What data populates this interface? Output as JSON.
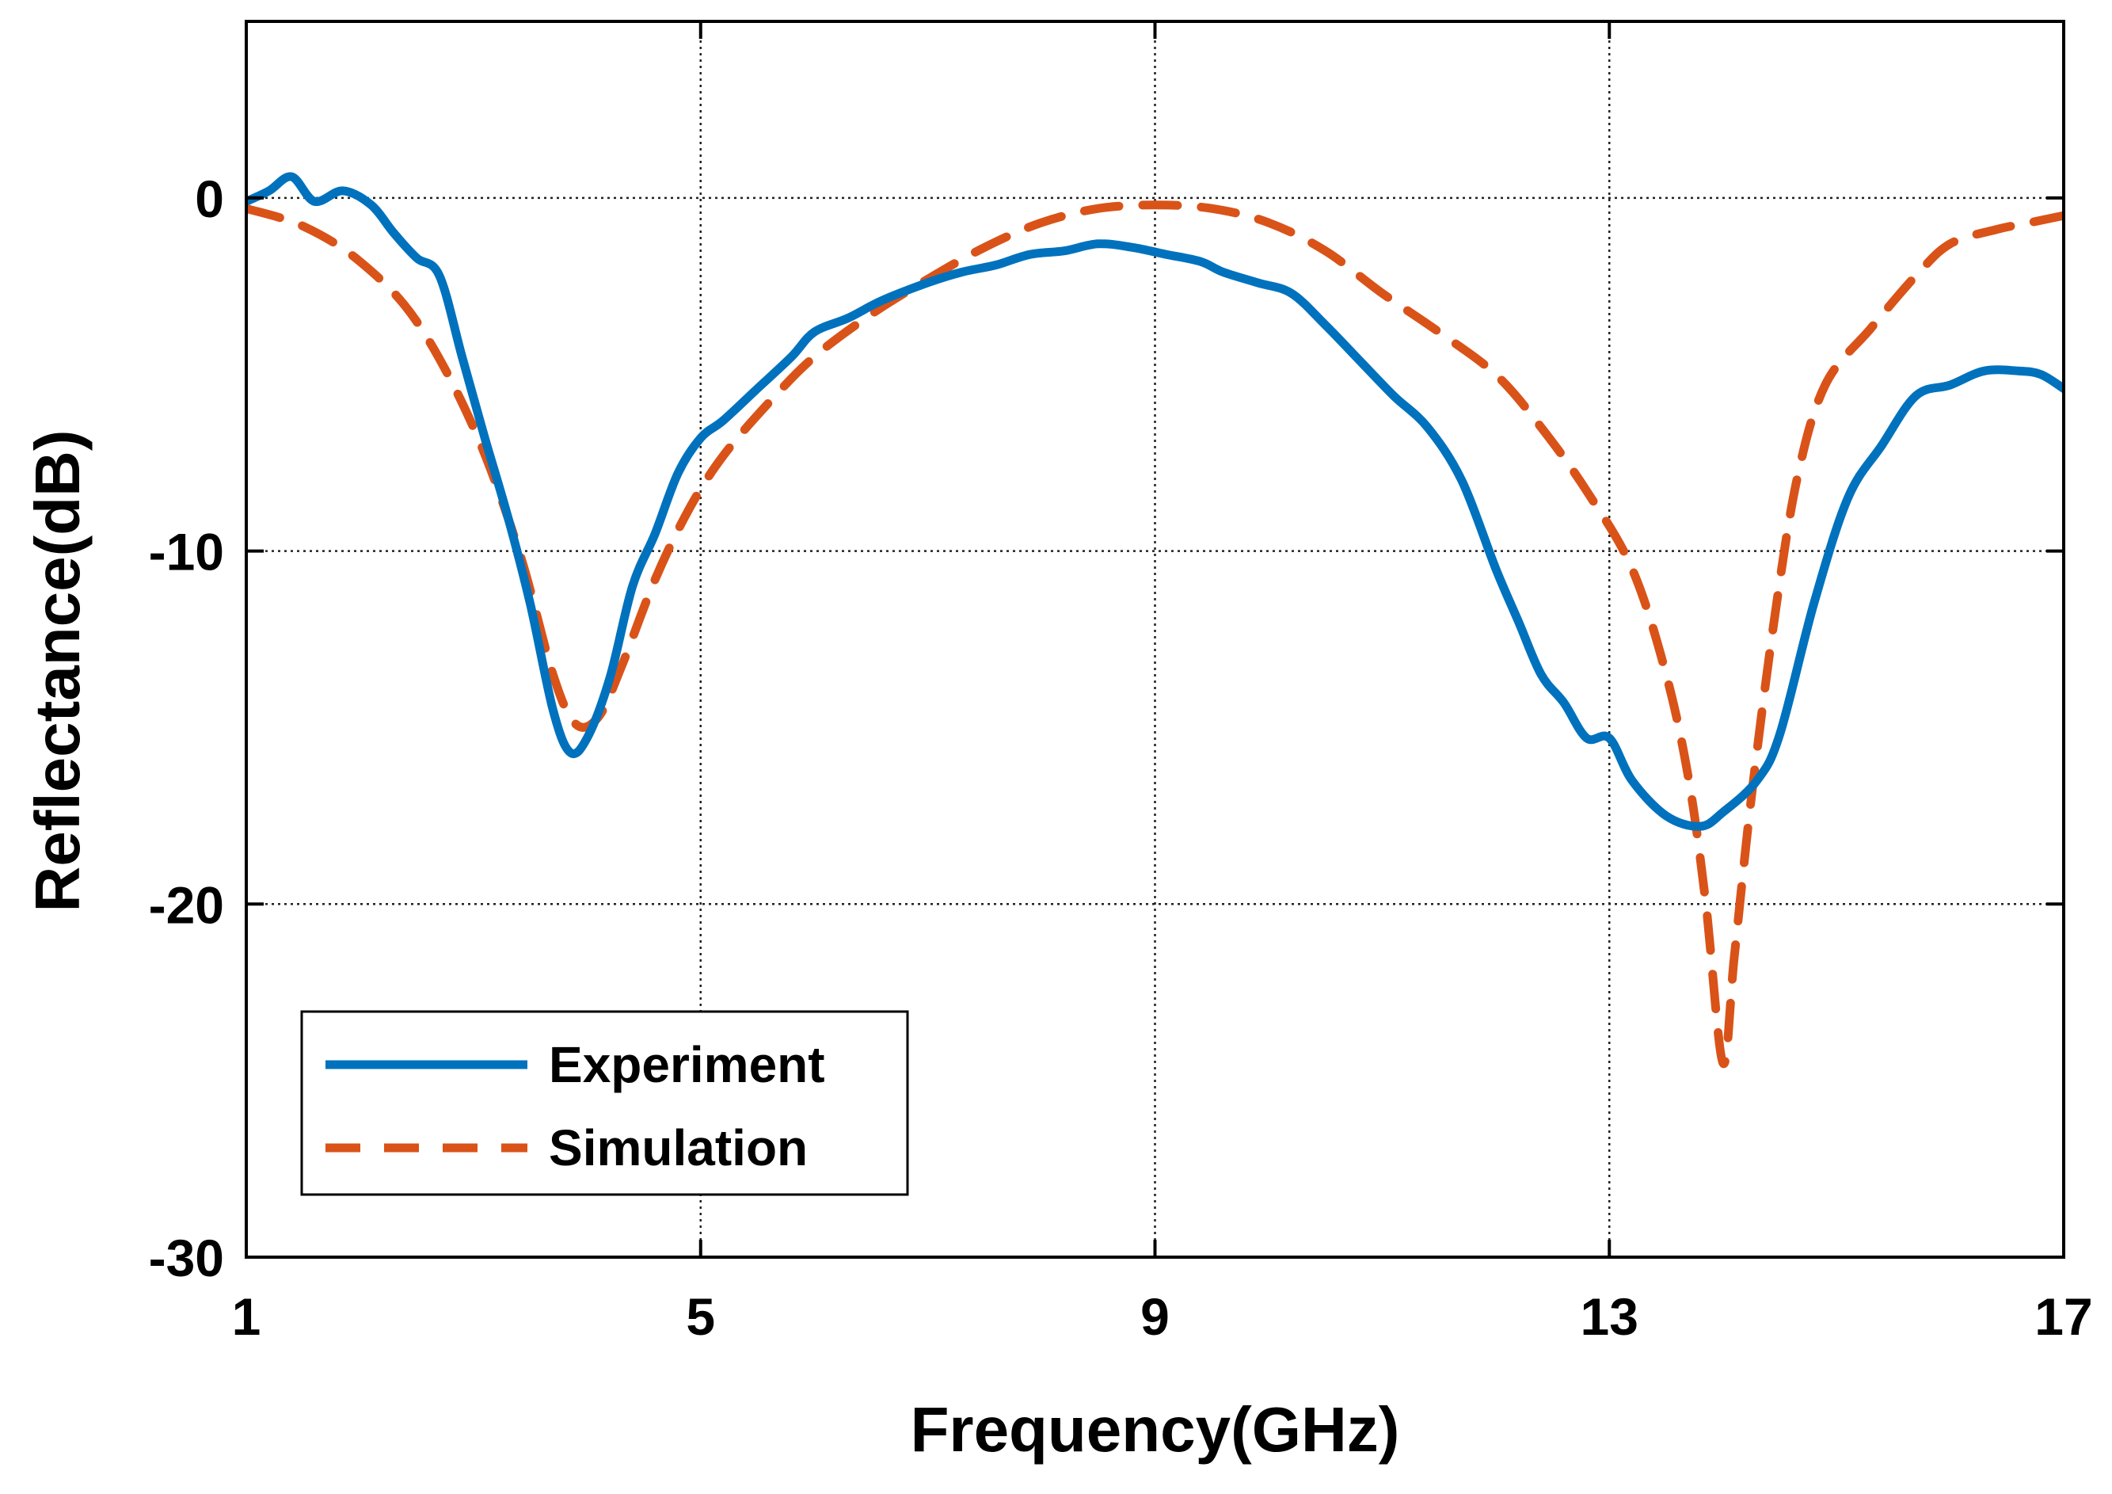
{
  "chart_data": {
    "type": "line",
    "title": "",
    "xlabel": "Frequency(GHz)",
    "ylabel": "Reflectance(dB)",
    "xlim": [
      1,
      17
    ],
    "ylim": [
      -30,
      5
    ],
    "xticks": [
      1,
      5,
      9,
      13,
      17
    ],
    "yticks": [
      0,
      -10,
      -20,
      -30
    ],
    "xtick_labels": [
      "1",
      "5",
      "9",
      "13",
      "17"
    ],
    "ytick_labels": [
      "0",
      "-10",
      "-20",
      "-30"
    ],
    "grid": true,
    "legend_position": "bottom-left",
    "series": [
      {
        "name": "Experiment",
        "color": "#0072BD",
        "style": "solid",
        "points": [
          [
            1.0,
            -0.1
          ],
          [
            1.2,
            0.2
          ],
          [
            1.4,
            0.6
          ],
          [
            1.6,
            -0.1
          ],
          [
            1.85,
            0.2
          ],
          [
            2.1,
            -0.2
          ],
          [
            2.3,
            -1.0
          ],
          [
            2.5,
            -1.7
          ],
          [
            2.7,
            -2.2
          ],
          [
            2.9,
            -4.5
          ],
          [
            3.1,
            -6.8
          ],
          [
            3.3,
            -9.0
          ],
          [
            3.5,
            -11.5
          ],
          [
            3.7,
            -14.5
          ],
          [
            3.85,
            -15.7
          ],
          [
            4.0,
            -15.3
          ],
          [
            4.2,
            -13.6
          ],
          [
            4.4,
            -11.0
          ],
          [
            4.6,
            -9.5
          ],
          [
            4.8,
            -7.8
          ],
          [
            5.0,
            -6.8
          ],
          [
            5.2,
            -6.3
          ],
          [
            5.5,
            -5.4
          ],
          [
            5.8,
            -4.5
          ],
          [
            6.0,
            -3.8
          ],
          [
            6.3,
            -3.4
          ],
          [
            6.6,
            -2.9
          ],
          [
            7.0,
            -2.4
          ],
          [
            7.3,
            -2.1
          ],
          [
            7.6,
            -1.9
          ],
          [
            7.9,
            -1.6
          ],
          [
            8.2,
            -1.5
          ],
          [
            8.5,
            -1.3
          ],
          [
            8.8,
            -1.4
          ],
          [
            9.1,
            -1.6
          ],
          [
            9.4,
            -1.8
          ],
          [
            9.6,
            -2.1
          ],
          [
            9.9,
            -2.4
          ],
          [
            10.2,
            -2.7
          ],
          [
            10.5,
            -3.6
          ],
          [
            10.8,
            -4.6
          ],
          [
            11.1,
            -5.6
          ],
          [
            11.4,
            -6.5
          ],
          [
            11.7,
            -8.0
          ],
          [
            12.0,
            -10.5
          ],
          [
            12.2,
            -12.0
          ],
          [
            12.4,
            -13.5
          ],
          [
            12.6,
            -14.3
          ],
          [
            12.8,
            -15.3
          ],
          [
            13.0,
            -15.3
          ],
          [
            13.2,
            -16.5
          ],
          [
            13.5,
            -17.5
          ],
          [
            13.8,
            -17.8
          ],
          [
            14.0,
            -17.4
          ],
          [
            14.3,
            -16.5
          ],
          [
            14.5,
            -15.2
          ],
          [
            14.8,
            -11.5
          ],
          [
            15.1,
            -8.5
          ],
          [
            15.4,
            -7.0
          ],
          [
            15.7,
            -5.6
          ],
          [
            16.0,
            -5.3
          ],
          [
            16.3,
            -4.9
          ],
          [
            16.6,
            -4.9
          ],
          [
            16.8,
            -5.0
          ],
          [
            17.0,
            -5.4
          ]
        ]
      },
      {
        "name": "Simulation",
        "color": "#D95319",
        "style": "dashed",
        "points": [
          [
            1.0,
            -0.3
          ],
          [
            1.5,
            -0.8
          ],
          [
            2.0,
            -1.8
          ],
          [
            2.5,
            -3.5
          ],
          [
            3.0,
            -6.5
          ],
          [
            3.4,
            -10.0
          ],
          [
            3.7,
            -13.5
          ],
          [
            3.9,
            -14.9
          ],
          [
            4.1,
            -14.7
          ],
          [
            4.3,
            -13.3
          ],
          [
            4.6,
            -10.8
          ],
          [
            4.9,
            -8.8
          ],
          [
            5.2,
            -7.3
          ],
          [
            5.6,
            -5.8
          ],
          [
            6.0,
            -4.5
          ],
          [
            6.5,
            -3.3
          ],
          [
            7.0,
            -2.3
          ],
          [
            7.5,
            -1.4
          ],
          [
            8.0,
            -0.7
          ],
          [
            8.5,
            -0.3
          ],
          [
            9.0,
            -0.2
          ],
          [
            9.5,
            -0.3
          ],
          [
            10.0,
            -0.7
          ],
          [
            10.5,
            -1.5
          ],
          [
            11.0,
            -2.7
          ],
          [
            11.5,
            -3.8
          ],
          [
            12.0,
            -5.0
          ],
          [
            12.4,
            -6.5
          ],
          [
            12.8,
            -8.3
          ],
          [
            13.2,
            -10.5
          ],
          [
            13.5,
            -13.5
          ],
          [
            13.7,
            -16.5
          ],
          [
            13.85,
            -20.0
          ],
          [
            14.0,
            -24.5
          ],
          [
            14.1,
            -21.5
          ],
          [
            14.25,
            -17.0
          ],
          [
            14.45,
            -12.0
          ],
          [
            14.65,
            -8.0
          ],
          [
            14.9,
            -5.3
          ],
          [
            15.3,
            -3.7
          ],
          [
            15.7,
            -2.2
          ],
          [
            16.0,
            -1.3
          ],
          [
            16.4,
            -0.9
          ],
          [
            16.7,
            -0.7
          ],
          [
            17.0,
            -0.5
          ]
        ]
      }
    ]
  }
}
